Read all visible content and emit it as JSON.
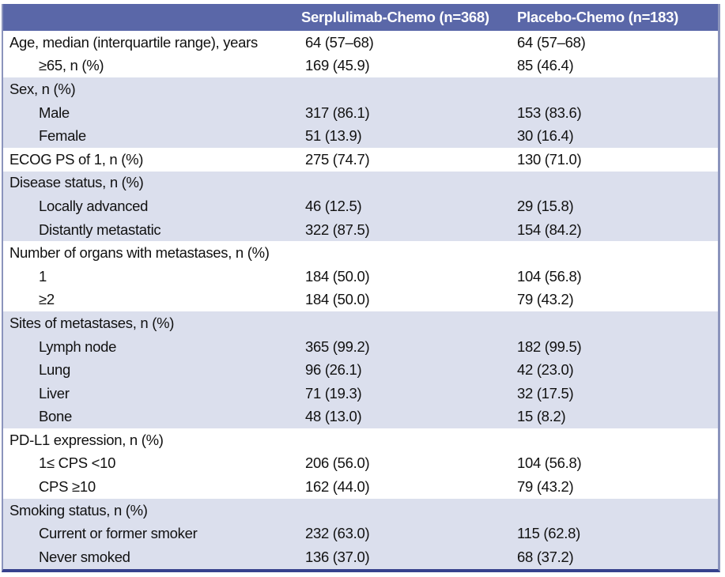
{
  "table": {
    "title_semantic": "Baseline characteristics table",
    "columns": [
      {
        "label": "Serplulimab-Chemo (n=368)"
      },
      {
        "label": "Placebo-Chemo (n=183)"
      }
    ],
    "rows": [
      {
        "label": "Age, median (interquartile range), years",
        "indent": 0,
        "shaded": false,
        "values": [
          "64 (57–68)",
          "64 (57–68)"
        ]
      },
      {
        "label": "≥65, n (%)",
        "indent": 1,
        "shaded": false,
        "values": [
          "169 (45.9)",
          "85 (46.4)"
        ]
      },
      {
        "label": "Sex, n (%)",
        "indent": 0,
        "shaded": true,
        "values": [
          "",
          ""
        ]
      },
      {
        "label": "Male",
        "indent": 1,
        "shaded": true,
        "values": [
          "317 (86.1)",
          "153 (83.6)"
        ]
      },
      {
        "label": "Female",
        "indent": 1,
        "shaded": true,
        "values": [
          "51 (13.9)",
          "30 (16.4)"
        ]
      },
      {
        "label": "ECOG PS of 1, n (%)",
        "indent": 0,
        "shaded": false,
        "values": [
          "275 (74.7)",
          "130 (71.0)"
        ]
      },
      {
        "label": "Disease status, n (%)",
        "indent": 0,
        "shaded": true,
        "values": [
          "",
          ""
        ]
      },
      {
        "label": "Locally advanced",
        "indent": 1,
        "shaded": true,
        "values": [
          "46 (12.5)",
          "29 (15.8)"
        ]
      },
      {
        "label": "Distantly metastatic",
        "indent": 1,
        "shaded": true,
        "values": [
          "322 (87.5)",
          "154 (84.2)"
        ]
      },
      {
        "label": "Number of organs with metastases, n (%)",
        "indent": 0,
        "shaded": false,
        "values": [
          "",
          ""
        ]
      },
      {
        "label": "1",
        "indent": 1,
        "shaded": false,
        "values": [
          "184 (50.0)",
          "104 (56.8)"
        ]
      },
      {
        "label": "≥2",
        "indent": 1,
        "shaded": false,
        "values": [
          "184 (50.0)",
          "79 (43.2)"
        ]
      },
      {
        "label": "Sites of metastases, n (%)",
        "indent": 0,
        "shaded": true,
        "values": [
          "",
          ""
        ]
      },
      {
        "label": "Lymph node",
        "indent": 1,
        "shaded": true,
        "values": [
          "365 (99.2)",
          "182 (99.5)"
        ]
      },
      {
        "label": "Lung",
        "indent": 1,
        "shaded": true,
        "values": [
          "96 (26.1)",
          "42 (23.0)"
        ]
      },
      {
        "label": "Liver",
        "indent": 1,
        "shaded": true,
        "values": [
          "71 (19.3)",
          "32 (17.5)"
        ]
      },
      {
        "label": "Bone",
        "indent": 1,
        "shaded": true,
        "values": [
          "48 (13.0)",
          "15 (8.2)"
        ]
      },
      {
        "label": "PD-L1 expression, n (%)",
        "indent": 0,
        "shaded": false,
        "values": [
          "",
          ""
        ]
      },
      {
        "label": "1≤ CPS <10",
        "indent": 1,
        "shaded": false,
        "values": [
          "206 (56.0)",
          "104 (56.8)"
        ]
      },
      {
        "label": "CPS ≥10",
        "indent": 1,
        "shaded": false,
        "values": [
          "162 (44.0)",
          "79 (43.2)"
        ]
      },
      {
        "label": "Smoking status, n (%)",
        "indent": 0,
        "shaded": true,
        "values": [
          "",
          ""
        ]
      },
      {
        "label": "Current or former smoker",
        "indent": 1,
        "shaded": true,
        "values": [
          "232 (63.0)",
          "115 (62.8)"
        ]
      },
      {
        "label": "Never smoked",
        "indent": 1,
        "shaded": true,
        "values": [
          "136 (37.0)",
          "68 (37.2)"
        ]
      }
    ]
  },
  "colors": {
    "header_bg": "#5A67A8",
    "header_text": "#FFFFFF",
    "shaded_row_bg": "#DBDFED",
    "frame_border": "#8B94BC",
    "bottom_rule": "#36418D",
    "body_text": "#111111"
  }
}
